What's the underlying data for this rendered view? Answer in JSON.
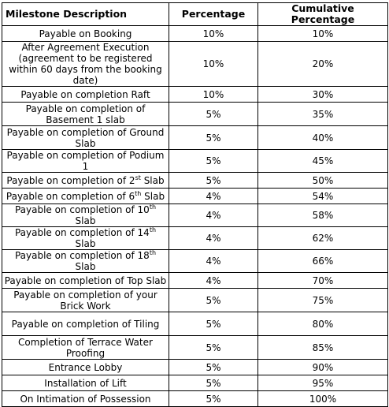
{
  "table": {
    "headers": [
      "Milestone Description",
      "Percentage",
      "Cumulative Percentage"
    ],
    "rows": [
      {
        "description": "Payable on Booking",
        "percentage": "10%",
        "cumulative": "10%"
      },
      {
        "description": "After Agreement Execution (agreement to be registered within 60 days from the booking date)",
        "percentage": "10%",
        "cumulative": "20%"
      },
      {
        "description": "Payable on completion Raft",
        "percentage": "10%",
        "cumulative": "30%"
      },
      {
        "description": "Payable on completion of Basement 1 slab",
        "percentage": "5%",
        "cumulative": "35%"
      },
      {
        "description": "Payable on completion of Ground Slab",
        "percentage": "5%",
        "cumulative": "40%"
      },
      {
        "description": "Payable on completion of Podium 1",
        "percentage": "5%",
        "cumulative": "45%"
      },
      {
        "description_pre": "Payable on completion of 2",
        "description_sup": "st",
        "description_post": " Slab",
        "percentage": "5%",
        "cumulative": "50%"
      },
      {
        "description_pre": "Payable on completion of 6",
        "description_sup": "th",
        "description_post": " Slab",
        "percentage": "4%",
        "cumulative": "54%"
      },
      {
        "description_pre": "Payable on completion of 10",
        "description_sup": "th",
        "description_post": " Slab",
        "percentage": "4%",
        "cumulative": "58%"
      },
      {
        "description_pre": "Payable on completion of 14",
        "description_sup": "th",
        "description_post": " Slab",
        "percentage": "4%",
        "cumulative": "62%"
      },
      {
        "description_pre": "Payable on completion of 18",
        "description_sup": "th",
        "description_post": " Slab",
        "percentage": "4%",
        "cumulative": "66%"
      },
      {
        "description": "Payable on completion of Top Slab",
        "percentage": "4%",
        "cumulative": "70%"
      },
      {
        "description": "Payable on completion of your Brick Work",
        "percentage": "5%",
        "cumulative": "75%"
      },
      {
        "description": "Payable on completion of Tiling",
        "percentage": "5%",
        "cumulative": "80%"
      },
      {
        "description": "Completion of Terrace Water Proofing",
        "percentage": "5%",
        "cumulative": "85%"
      },
      {
        "description": "Entrance Lobby",
        "percentage": "5%",
        "cumulative": "90%"
      },
      {
        "description": "Installation of Lift",
        "percentage": "5%",
        "cumulative": "95%"
      },
      {
        "description": "On Intimation of Possession",
        "percentage": "5%",
        "cumulative": "100%"
      }
    ]
  }
}
